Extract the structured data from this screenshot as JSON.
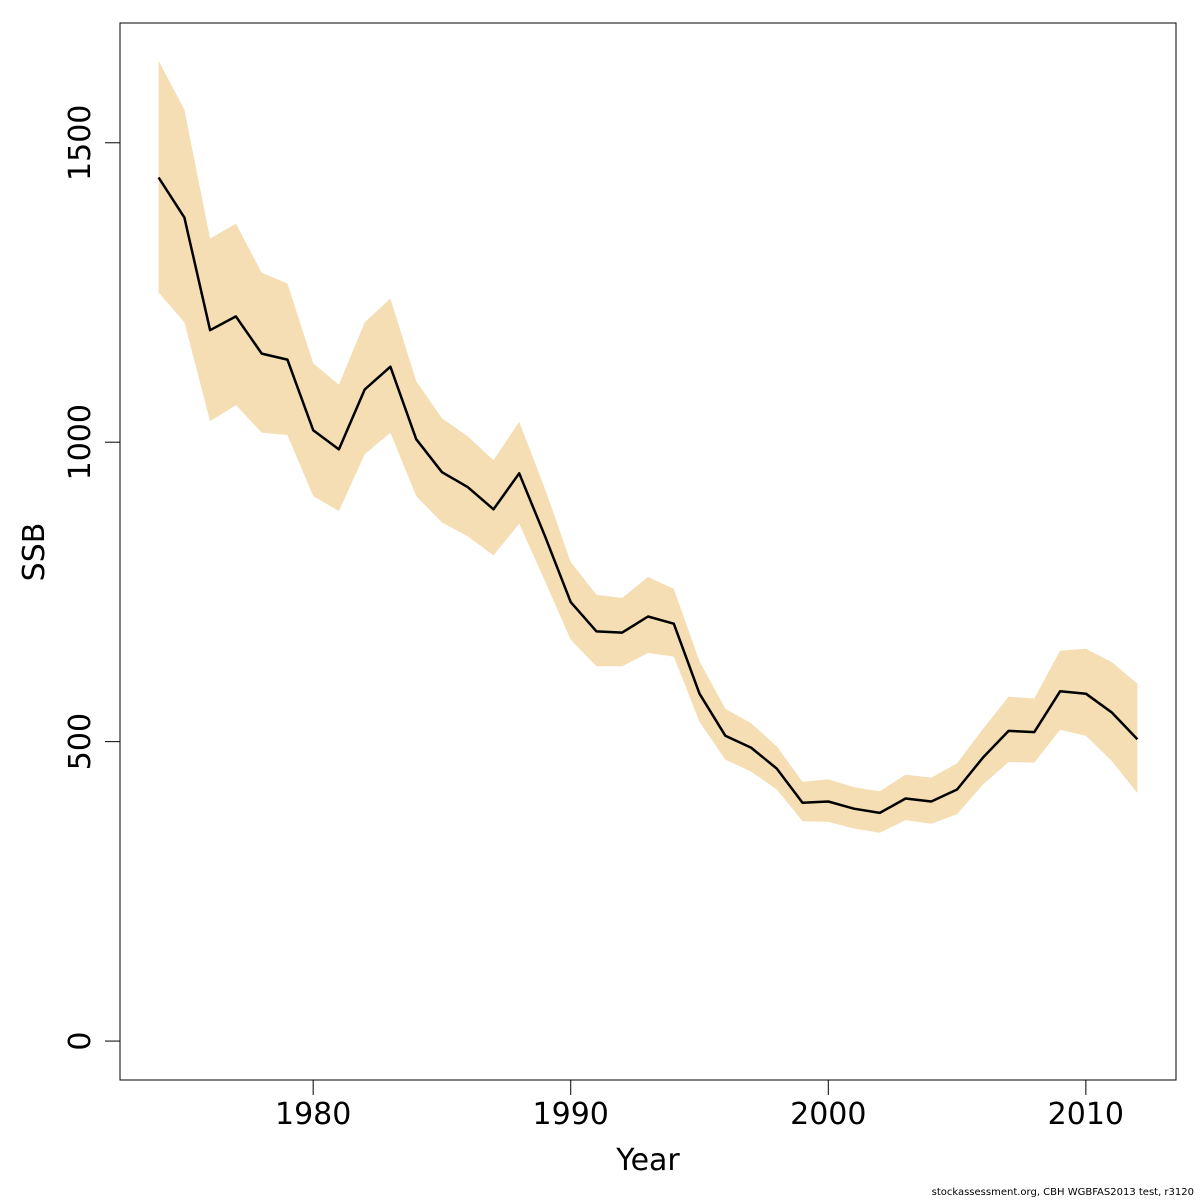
{
  "chart_data": {
    "type": "line",
    "xlabel": "Year",
    "ylabel": "SSB",
    "xlim": [
      1972.5,
      2013.5
    ],
    "ylim": [
      -65,
      1700
    ],
    "x_ticks": [
      1980,
      1990,
      2000,
      2010
    ],
    "y_ticks": [
      0,
      500,
      1000,
      1500
    ],
    "band_color": "#f5deb3",
    "line_color": "#000000",
    "x": [
      1974,
      1975,
      1976,
      1977,
      1978,
      1979,
      1980,
      1981,
      1982,
      1983,
      1984,
      1985,
      1986,
      1987,
      1988,
      1989,
      1990,
      1991,
      1992,
      1993,
      1994,
      1995,
      1996,
      1997,
      1998,
      1999,
      2000,
      2001,
      2002,
      2003,
      2004,
      2005,
      2006,
      2007,
      2008,
      2009,
      2010,
      2011,
      2012
    ],
    "series": [
      {
        "values": [
          1442,
          1375,
          1187,
          1210,
          1148,
          1138,
          1020,
          988,
          1088,
          1126,
          1005,
          950,
          925,
          888,
          948,
          843,
          733,
          684,
          682,
          709,
          697,
          580,
          510,
          490,
          455,
          398,
          400,
          388,
          381,
          405,
          400,
          420,
          473,
          518,
          516,
          584,
          580,
          549,
          504
        ],
        "lower": [
          1250,
          1200,
          1035,
          1062,
          1016,
          1012,
          910,
          885,
          980,
          1016,
          910,
          866,
          843,
          811,
          864,
          768,
          670,
          626,
          626,
          648,
          642,
          533,
          470,
          450,
          420,
          367,
          366,
          355,
          348,
          369,
          363,
          379,
          428,
          466,
          465,
          520,
          510,
          468,
          414
        ],
        "upper": [
          1637,
          1555,
          1340,
          1365,
          1283,
          1265,
          1132,
          1096,
          1200,
          1240,
          1102,
          1040,
          1010,
          970,
          1034,
          922,
          800,
          745,
          740,
          775,
          755,
          634,
          555,
          531,
          492,
          433,
          437,
          424,
          417,
          445,
          440,
          464,
          521,
          575,
          572,
          652,
          655,
          633,
          597
        ]
      }
    ]
  },
  "footer": "stockassessment.org, CBH  WGBFAS2013 test, r3120"
}
